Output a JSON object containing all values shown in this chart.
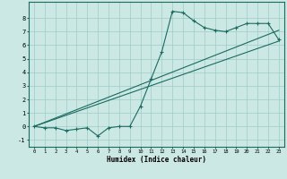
{
  "x_data": [
    0,
    1,
    2,
    3,
    4,
    5,
    6,
    7,
    8,
    9,
    10,
    11,
    12,
    13,
    14,
    15,
    16,
    17,
    18,
    19,
    20,
    21,
    22,
    23
  ],
  "y_scatter": [
    0.0,
    -0.1,
    -0.1,
    -0.3,
    -0.2,
    -0.1,
    -0.7,
    -0.1,
    0.0,
    0.0,
    1.5,
    3.5,
    5.5,
    8.5,
    8.4,
    7.8,
    7.3,
    7.1,
    7.0,
    7.3,
    7.6,
    7.6,
    7.6,
    6.4
  ],
  "line1_x": [
    0,
    23
  ],
  "line1_y": [
    0.0,
    6.3
  ],
  "line2_x": [
    0,
    23
  ],
  "line2_y": [
    0.0,
    7.1
  ],
  "xlabel": "Humidex (Indice chaleur)",
  "xlim": [
    -0.5,
    23.5
  ],
  "ylim": [
    -1.5,
    9.2
  ],
  "yticks": [
    -1,
    0,
    1,
    2,
    3,
    4,
    5,
    6,
    7,
    8
  ],
  "xticks": [
    0,
    1,
    2,
    3,
    4,
    5,
    6,
    7,
    8,
    9,
    10,
    11,
    12,
    13,
    14,
    15,
    16,
    17,
    18,
    19,
    20,
    21,
    22,
    23
  ],
  "xtick_labels": [
    "0",
    "1",
    "2",
    "3",
    "4",
    "5",
    "6",
    "7",
    "8",
    "9",
    "10",
    "11",
    "12",
    "13",
    "14",
    "15",
    "16",
    "17",
    "18",
    "19",
    "20",
    "21",
    "22",
    "23"
  ],
  "bg_color": "#cce8e4",
  "line_color": "#1a6b60",
  "grid_color": "#9eccc6"
}
